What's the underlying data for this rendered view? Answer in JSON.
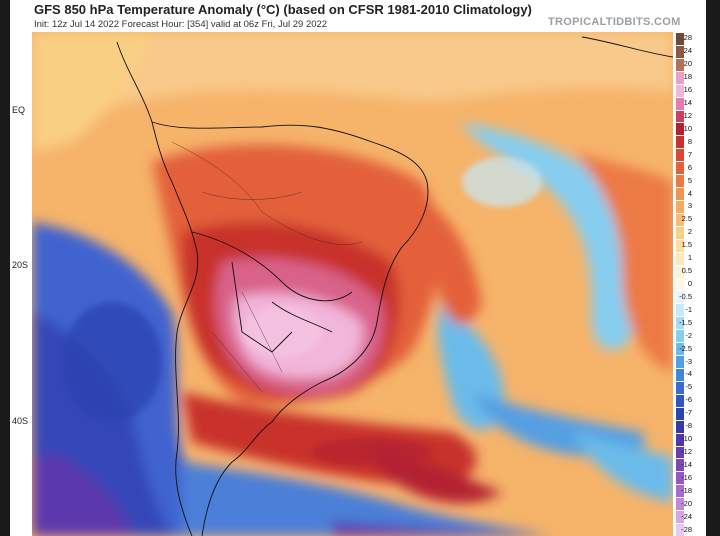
{
  "header": {
    "title": "GFS 850 hPa Temperature Anomaly (°C) (based on CFSR 1981-2010 Climatology)",
    "subtitle": "Init: 12z Jul 14 2022   Forecast Hour: [354]   valid at 06z Fri, Jul 29 2022",
    "brand": "TROPICALTIDBITS.COM"
  },
  "latitude_labels": {
    "eq": "EQ",
    "s20": "20S",
    "s40": "40S"
  },
  "legend": {
    "labels": [
      "28",
      "24",
      "20",
      "18",
      "16",
      "14",
      "12",
      "10",
      "8",
      "7",
      "6",
      "5",
      "4",
      "3",
      "2.5",
      "2",
      "1.5",
      "1",
      "0.5",
      "0",
      "-0.5",
      "-1",
      "-1.5",
      "-2",
      "-2.5",
      "-3",
      "-4",
      "-5",
      "-6",
      "-7",
      "-8",
      "-10",
      "-12",
      "-14",
      "-16",
      "-18",
      "-20",
      "-24",
      "-28"
    ],
    "colors": [
      "#6b4a3a",
      "#8a5a44",
      "#b0705a",
      "#e8a0c8",
      "#f2b6da",
      "#e77ab0",
      "#c94060",
      "#b32030",
      "#c8322a",
      "#d84a30",
      "#e3613a",
      "#ec7a44",
      "#f2944e",
      "#f6ab5c",
      "#f8be6e",
      "#f9cf83",
      "#fbdd9c",
      "#fce8b8",
      "#fdf2d4",
      "#fdf7e6",
      "#e8f4fb",
      "#c6e8f7",
      "#a6dbf3",
      "#86cdef",
      "#6abbea",
      "#559fe3",
      "#4385db",
      "#3a6bd0",
      "#3255c2",
      "#2c43b0",
      "#3a37a6",
      "#5534a8",
      "#6a3bb0",
      "#7e48b8",
      "#9557c2",
      "#aa6ccd",
      "#c086d8",
      "#d6a6e3",
      "#e9c8ef"
    ]
  }
}
